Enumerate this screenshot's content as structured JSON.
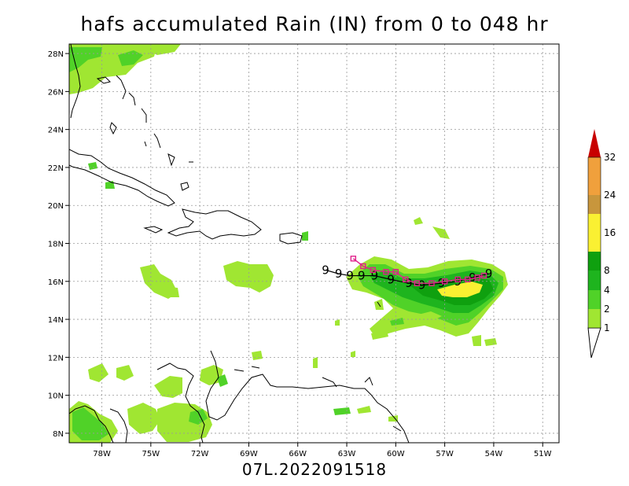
{
  "title": "hafs accumulated Rain (IN) from 0 to 048 hr",
  "storm_label": "07L.2022091518",
  "colors": {
    "c1": "#a0e632",
    "c2": "#50d228",
    "c4": "#1eb41e",
    "c8": "#0fa00f",
    "c16": "#faf032",
    "c24": "#c8963c",
    "c32": "#f0a03c",
    "cTop": "#c80000",
    "track_forecast": "#e0208a",
    "track_best": "#000000"
  },
  "map": {
    "lon_range": [
      -80,
      -50
    ],
    "lat_range": [
      7.5,
      28.5
    ],
    "lon_ticks": [
      {
        "lon": -78,
        "label": "78W"
      },
      {
        "lon": -75,
        "label": "75W"
      },
      {
        "lon": -72,
        "label": "72W"
      },
      {
        "lon": -69,
        "label": "69W"
      },
      {
        "lon": -66,
        "label": "66W"
      },
      {
        "lon": -63,
        "label": "63W"
      },
      {
        "lon": -60,
        "label": "60W"
      },
      {
        "lon": -57,
        "label": "57W"
      },
      {
        "lon": -54,
        "label": "54W"
      },
      {
        "lon": -51,
        "label": "51W"
      }
    ],
    "lat_ticks": [
      {
        "lat": 8,
        "label": "8N"
      },
      {
        "lat": 10,
        "label": "10N"
      },
      {
        "lat": 12,
        "label": "12N"
      },
      {
        "lat": 14,
        "label": "14N"
      },
      {
        "lat": 16,
        "label": "16N"
      },
      {
        "lat": 18,
        "label": "18N"
      },
      {
        "lat": 20,
        "label": "20N"
      },
      {
        "lat": 22,
        "label": "22N"
      },
      {
        "lat": 24,
        "label": "24N"
      },
      {
        "lat": 26,
        "label": "26N"
      },
      {
        "lat": 28,
        "label": "28N"
      }
    ]
  },
  "legend": {
    "levels": [
      "1",
      "2",
      "4",
      "8",
      "16",
      "24",
      "32"
    ]
  },
  "track": {
    "symbol": "9",
    "best_track": [
      [
        -64.3,
        16.6
      ],
      [
        -63.5,
        16.4
      ],
      [
        -62.8,
        16.3
      ],
      [
        -62.1,
        16.3
      ],
      [
        -61.3,
        16.3
      ],
      [
        -60.3,
        16.1
      ],
      [
        -59.2,
        15.9
      ],
      [
        -58.4,
        15.8
      ],
      [
        -57.2,
        15.9
      ],
      [
        -56.2,
        16.0
      ],
      [
        -55.3,
        16.2
      ],
      [
        -54.3,
        16.4
      ]
    ],
    "forecast_track": [
      [
        -62.6,
        17.2
      ],
      [
        -62.0,
        16.8
      ],
      [
        -61.4,
        16.6
      ],
      [
        -60.6,
        16.5
      ],
      [
        -60.0,
        16.5
      ],
      [
        -59.4,
        16.1
      ],
      [
        -58.7,
        15.9
      ],
      [
        -57.8,
        15.9
      ],
      [
        -57.0,
        16.0
      ],
      [
        -56.2,
        16.1
      ],
      [
        -55.6,
        16.1
      ],
      [
        -55.0,
        16.2
      ],
      [
        -54.6,
        16.3
      ]
    ]
  }
}
